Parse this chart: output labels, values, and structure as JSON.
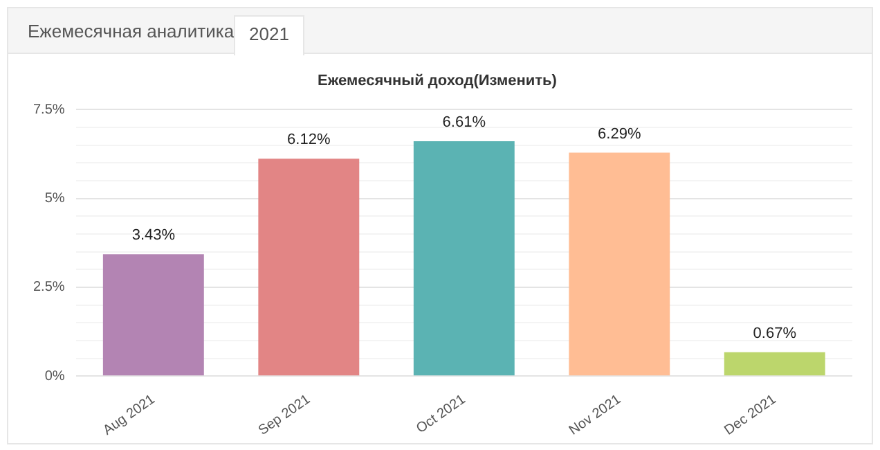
{
  "chart_data": {
    "type": "bar",
    "title": "Ежемесячный доход(Изменить)",
    "annotations": [
      "Ежемесячная аналитика",
      "2021"
    ],
    "categories": [
      "Aug 2021",
      "Sep 2021",
      "Oct 2021",
      "Nov 2021",
      "Dec 2021"
    ],
    "values": [
      3.43,
      6.12,
      6.61,
      6.29,
      0.67
    ],
    "value_labels": [
      "3.43%",
      "6.12%",
      "6.61%",
      "6.29%",
      "0.67%"
    ],
    "colors": [
      "#b384b3",
      "#e28585",
      "#5bb3b3",
      "#ffbd94",
      "#bcd66c"
    ],
    "ylim": [
      0,
      7.5
    ],
    "yticks": [
      {
        "value": 0,
        "label": "0%"
      },
      {
        "value": 0.5,
        "label": null
      },
      {
        "value": 1,
        "label": null
      },
      {
        "value": 1.5,
        "label": null
      },
      {
        "value": 2,
        "label": null
      },
      {
        "value": 2.5,
        "label": "2.5%"
      },
      {
        "value": 3,
        "label": null
      },
      {
        "value": 3.5,
        "label": null
      },
      {
        "value": 4,
        "label": null
      },
      {
        "value": 4.5,
        "label": null
      },
      {
        "value": 5,
        "label": "5%"
      },
      {
        "value": 5.5,
        "label": null
      },
      {
        "value": 6,
        "label": null
      },
      {
        "value": 6.5,
        "label": null
      },
      {
        "value": 7,
        "label": null
      },
      {
        "value": 7.5,
        "label": "7.5%"
      }
    ],
    "grid": true,
    "legend": false
  }
}
